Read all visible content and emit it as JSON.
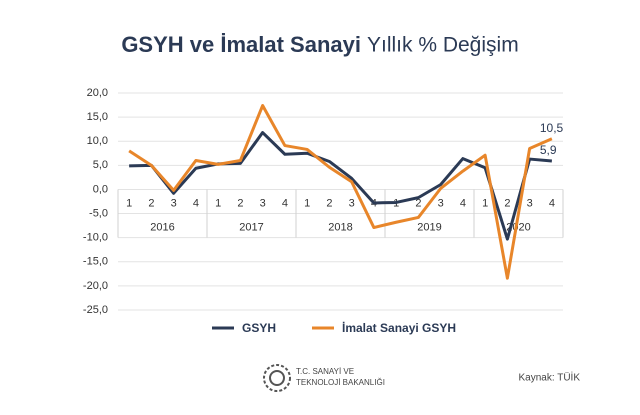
{
  "chart_data": {
    "type": "line",
    "title": "GSYH ve İmalat Sanayi",
    "subtitle": "Yıllık % Değişim",
    "categories": [
      "1",
      "2",
      "3",
      "4",
      "1",
      "2",
      "3",
      "4",
      "1",
      "2",
      "3",
      "4",
      "1",
      "2",
      "3",
      "4",
      "1",
      "2",
      "3",
      "4"
    ],
    "years": [
      "2016",
      "2017",
      "2018",
      "2019",
      "2020"
    ],
    "series": [
      {
        "name": "GSYH",
        "color": "#2b3a55",
        "values": [
          4.9,
          5.0,
          -0.8,
          4.4,
          5.3,
          5.4,
          11.8,
          7.3,
          7.5,
          5.8,
          2.3,
          -2.8,
          -2.7,
          -1.7,
          1.0,
          6.4,
          4.5,
          -10.3,
          6.3,
          5.9
        ],
        "value_labels": [
          null,
          null,
          null,
          null,
          null,
          null,
          null,
          null,
          null,
          null,
          null,
          null,
          null,
          null,
          null,
          null,
          null,
          null,
          null,
          "5,9"
        ]
      },
      {
        "name": "İmalat Sanayi GSYH",
        "color": "#e8862a",
        "values": [
          8.0,
          5.0,
          -0.2,
          6.0,
          5.2,
          6.0,
          17.4,
          9.1,
          8.3,
          4.6,
          1.6,
          -7.9,
          -6.8,
          -5.8,
          0.2,
          3.8,
          7.1,
          -18.4,
          8.5,
          10.5
        ],
        "value_labels": [
          null,
          null,
          null,
          null,
          null,
          null,
          null,
          null,
          null,
          null,
          null,
          null,
          null,
          null,
          null,
          null,
          null,
          null,
          null,
          "10,5"
        ]
      }
    ],
    "ylim": [
      -25,
      20
    ],
    "yticks": [
      {
        "value": -25,
        "label": "-25,0"
      },
      {
        "value": -20,
        "label": "-20,0"
      },
      {
        "value": -15,
        "label": "-15,0"
      },
      {
        "value": -10,
        "label": "-10,0"
      },
      {
        "value": -5,
        "label": "-5,0"
      },
      {
        "value": 0,
        "label": "0,0"
      },
      {
        "value": 5,
        "label": "5,0"
      },
      {
        "value": 10,
        "label": "10,0"
      },
      {
        "value": 15,
        "label": "15,0"
      },
      {
        "value": 20,
        "label": "20,0"
      }
    ],
    "grid": true,
    "legend": "bottom"
  },
  "footer": {
    "ministry": [
      "T.C. SANAYİ VE",
      "TEKNOLOJİ BAKANLIĞI"
    ],
    "source": "Kaynak: TÜİK"
  }
}
